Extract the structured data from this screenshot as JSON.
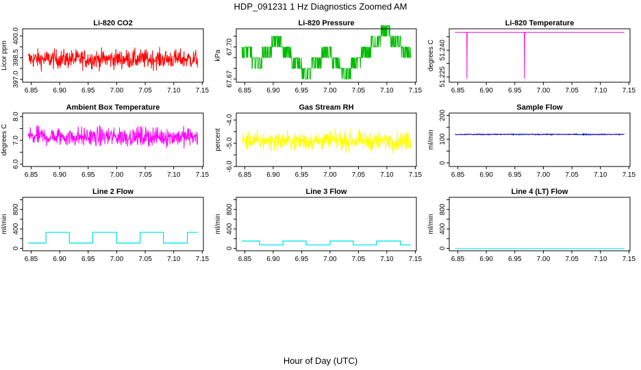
{
  "title": "HDP_091231  1 Hz Diagnostics Zoomed AM",
  "xlabel": "Hour of Day (UTC)",
  "chart_data": [
    {
      "type": "line",
      "title": "Li-820 CO2",
      "ylabel": "Licor ppm",
      "color": "#ff0000",
      "x_range": [
        6.845,
        7.142
      ],
      "xlim": [
        6.835,
        7.152
      ],
      "xticks": [
        "6.85",
        "6.90",
        "6.95",
        "7.00",
        "7.05",
        "7.10",
        "7.15"
      ],
      "ylim": [
        396.8,
        400.5
      ],
      "yticks": [
        "397.0",
        "398.5",
        "400.0"
      ],
      "ytick_values": [
        397.0,
        398.5,
        400.0
      ],
      "yminor": [
        397.75,
        399.25
      ],
      "signal": "noise",
      "center": 398.4,
      "amplitude": 0.9
    },
    {
      "type": "line",
      "title": "Li-820 Pressure",
      "ylabel": "kPa",
      "color": "#00bb00",
      "x_range": [
        6.845,
        7.142
      ],
      "xlim": [
        6.835,
        7.152
      ],
      "xticks": [
        "6.85",
        "6.90",
        "6.95",
        "7.00",
        "7.05",
        "7.10",
        "7.15"
      ],
      "ylim": [
        67.667,
        67.717
      ],
      "yticks": [
        "67.67",
        "67.70"
      ],
      "ytick_values": [
        67.67,
        67.7
      ],
      "yminor": [
        67.68,
        67.69,
        67.71
      ],
      "signal": "steps",
      "levels": [
        67.69,
        67.68,
        67.69,
        67.7,
        67.69,
        67.68,
        67.67,
        67.68,
        67.69,
        67.68,
        67.67,
        67.68,
        67.69,
        67.7,
        67.71,
        67.7,
        67.69
      ],
      "jitter": 0.01
    },
    {
      "type": "line",
      "title": "Li-820 Temperature",
      "ylabel": "degrees C",
      "color": "#ee00ee",
      "x_range": [
        6.845,
        7.142
      ],
      "xlim": [
        6.835,
        7.152
      ],
      "xticks": [
        "6.85",
        "6.90",
        "6.95",
        "7.00",
        "7.05",
        "7.10",
        "7.15"
      ],
      "ylim": [
        51.222,
        51.252
      ],
      "yticks": [
        "51.225",
        "51.240"
      ],
      "ytick_values": [
        51.225,
        51.24
      ],
      "yminor": [
        51.2325,
        51.2475
      ],
      "signal": "flat",
      "center": 51.25,
      "dips": [
        {
          "x": 6.866,
          "y": 51.224
        },
        {
          "x": 6.967,
          "y": 51.224
        }
      ]
    },
    {
      "type": "line",
      "title": "Ambient Box Temperature",
      "ylabel": "degrees C",
      "color": "#ff00ff",
      "x_range": [
        6.845,
        7.142
      ],
      "xlim": [
        6.835,
        7.152
      ],
      "xticks": [
        "6.85",
        "6.90",
        "6.95",
        "7.00",
        "7.05",
        "7.10",
        "7.15"
      ],
      "ylim": [
        5.9,
        8.15
      ],
      "yticks": [
        "6.0",
        "7.0",
        "8.0"
      ],
      "ytick_values": [
        6.0,
        7.0,
        8.0
      ],
      "yminor": [
        6.5,
        7.5
      ],
      "signal": "noise",
      "center": 7.15,
      "amplitude": 0.55
    },
    {
      "type": "line",
      "title": "Gas Stream RH",
      "ylabel": "percent",
      "color": "#ffff00",
      "x_range": [
        6.845,
        7.142
      ],
      "xlim": [
        6.835,
        7.152
      ],
      "xticks": [
        "6.85",
        "6.90",
        "6.95",
        "7.00",
        "7.05",
        "7.10",
        "7.15"
      ],
      "ylim": [
        -6.0,
        -3.7
      ],
      "yticks": [
        "-6.0",
        "-5.0",
        "-4.0"
      ],
      "ytick_values": [
        -6.0,
        -5.0,
        -4.0
      ],
      "yminor": [
        -5.5,
        -4.5
      ],
      "signal": "noise",
      "center": -4.9,
      "amplitude": 0.55
    },
    {
      "type": "line",
      "title": "Sample Flow",
      "ylabel": "ml/min",
      "color": "#0000cc",
      "x_range": [
        6.845,
        7.142
      ],
      "xlim": [
        6.835,
        7.152
      ],
      "xticks": [
        "6.85",
        "6.90",
        "6.95",
        "7.00",
        "7.05",
        "7.10",
        "7.15"
      ],
      "ylim": [
        -15,
        210
      ],
      "yticks": [
        "0",
        "100",
        "200"
      ],
      "ytick_values": [
        0,
        100,
        200
      ],
      "yminor": [
        50,
        150
      ],
      "signal": "noise",
      "center": 120,
      "amplitude": 3
    },
    {
      "type": "line",
      "title": "Line 2 Flow",
      "ylabel": "ml/min",
      "color": "#00e5e5",
      "x_range": [
        6.845,
        7.142
      ],
      "xlim": [
        6.835,
        7.152
      ],
      "xticks": [
        "6.85",
        "6.90",
        "6.95",
        "7.00",
        "7.05",
        "7.10",
        "7.15"
      ],
      "ylim": [
        -50,
        1050
      ],
      "yticks": [
        "0",
        "400",
        "800"
      ],
      "ytick_values": [
        0,
        400,
        800
      ],
      "yminor": [
        200,
        600,
        1000
      ],
      "signal": "square",
      "segments": [
        [
          6.845,
          6.876,
          110
        ],
        [
          6.876,
          6.917,
          330
        ],
        [
          6.917,
          6.958,
          110
        ],
        [
          6.958,
          7.0,
          330
        ],
        [
          7.0,
          7.041,
          110
        ],
        [
          7.041,
          7.082,
          330
        ],
        [
          7.082,
          7.124,
          110
        ],
        [
          7.124,
          7.142,
          330
        ]
      ]
    },
    {
      "type": "line",
      "title": "Line 3 Flow",
      "ylabel": "ml/min",
      "color": "#00e5e5",
      "x_range": [
        6.845,
        7.142
      ],
      "xlim": [
        6.835,
        7.152
      ],
      "xticks": [
        "6.85",
        "6.90",
        "6.95",
        "7.00",
        "7.05",
        "7.10",
        "7.15"
      ],
      "ylim": [
        -50,
        1050
      ],
      "yticks": [
        "0",
        "400",
        "800"
      ],
      "ytick_values": [
        0,
        400,
        800
      ],
      "yminor": [
        200,
        600,
        1000
      ],
      "signal": "square",
      "segments": [
        [
          6.845,
          6.876,
          150
        ],
        [
          6.876,
          6.917,
          70
        ],
        [
          6.917,
          6.958,
          150
        ],
        [
          6.958,
          7.0,
          70
        ],
        [
          7.0,
          7.041,
          150
        ],
        [
          7.041,
          7.082,
          70
        ],
        [
          7.082,
          7.124,
          150
        ],
        [
          7.124,
          7.142,
          70
        ]
      ]
    },
    {
      "type": "line",
      "title": "Line 4 (LT) Flow",
      "ylabel": "ml/min",
      "color": "#00e5e5",
      "x_range": [
        6.845,
        7.142
      ],
      "xlim": [
        6.835,
        7.152
      ],
      "xticks": [
        "6.85",
        "6.90",
        "6.95",
        "7.00",
        "7.05",
        "7.10",
        "7.15"
      ],
      "ylim": [
        -50,
        1050
      ],
      "yticks": [
        "0",
        "400",
        "800"
      ],
      "ytick_values": [
        0,
        400,
        800
      ],
      "yminor": [
        200,
        600,
        1000
      ],
      "signal": "flat",
      "center": -5,
      "dips": []
    }
  ]
}
